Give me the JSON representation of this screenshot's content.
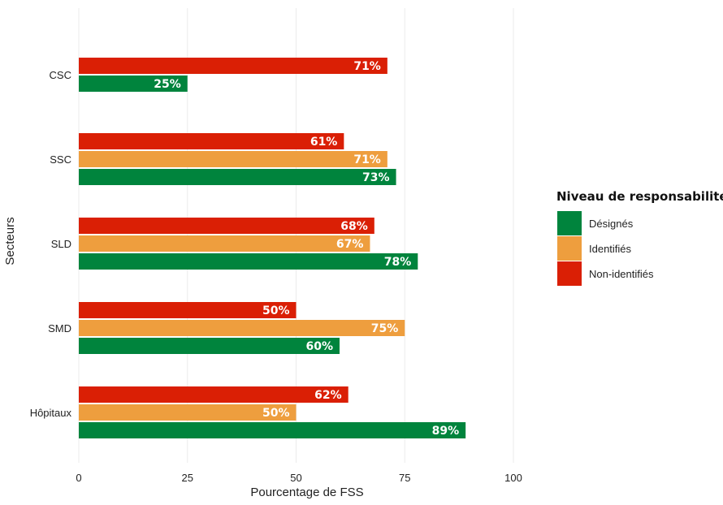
{
  "chart_data": {
    "type": "bar",
    "orientation": "horizontal",
    "title": "",
    "xlabel": "Pourcentage de FSS",
    "ylabel": "Secteurs",
    "xlim": [
      0,
      100
    ],
    "xticks": [
      0,
      25,
      50,
      75,
      100
    ],
    "grid": true,
    "categories": [
      "CSC",
      "SSC",
      "SLD",
      "SMD",
      "Hôpitaux"
    ],
    "legend": {
      "title": "Niveau de responsabilité",
      "position": "right"
    },
    "series": [
      {
        "name": "Non-identifiés",
        "color": "#DA1F05",
        "values": [
          71,
          61,
          68,
          50,
          62
        ]
      },
      {
        "name": "Identifiés",
        "color": "#EE9E3E",
        "values": [
          null,
          71,
          67,
          75,
          50
        ]
      },
      {
        "name": "Désignés",
        "color": "#00843D",
        "values": [
          25,
          73,
          78,
          60,
          89
        ]
      }
    ],
    "value_suffix": "%"
  }
}
